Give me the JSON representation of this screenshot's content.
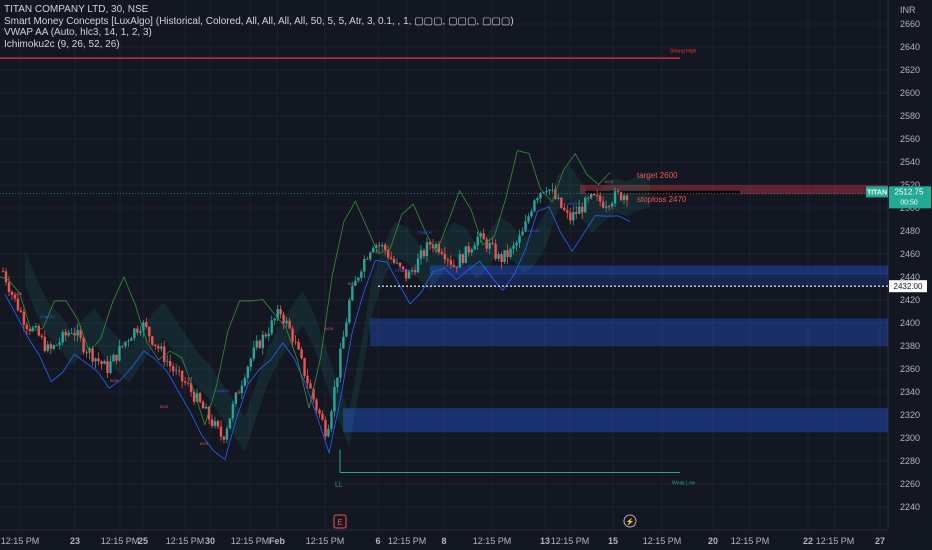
{
  "legend": {
    "symbol_line": "TITAN COMPANY LTD, 30, NSE",
    "indicators": [
      "Smart Money Concepts [LuxAlgo] (Historical, Colored, All, All, All, All, 50, 5, 5, Atr, 3, 0.1, , 1, ▢▢▢, ▢▢▢, ▢▢▢)",
      "VWAP AA (Auto, hlc3, 14, 1, 2, 3)",
      "Ichimoku2c (9, 26, 52, 26)"
    ]
  },
  "colors": {
    "background": "#131722",
    "grid": "#1e222d",
    "bull": "#26a69a",
    "bear": "#ef5350",
    "axis_text": "#b2b5be",
    "demand_zone": "#2962ff",
    "supply_zone": "#f23645",
    "price_label": "#22ab94"
  },
  "chart_data": {
    "type": "candlestick",
    "title": "TITAN COMPANY LTD, 30, NSE",
    "currency": "INR",
    "ylim": [
      2230,
      2670
    ],
    "y_ticks": [
      2240,
      2260,
      2280,
      2300,
      2320,
      2340,
      2360,
      2380,
      2400,
      2420,
      2440,
      2460,
      2480,
      2500,
      2520,
      2540,
      2560,
      2580,
      2600,
      2620,
      2640,
      2660
    ],
    "x_ticks": [
      "12:15 PM",
      "23",
      "12:15 PM",
      "25",
      "12:15 PM",
      "30",
      "12:15 PM",
      "Feb",
      "12:15 PM",
      "6",
      "12:15 PM",
      "8",
      "12:15 PM",
      "13",
      "12:15 PM",
      "15",
      "12:15 PM",
      "20",
      "12:15 PM",
      "22",
      "12:15 PM",
      "27"
    ],
    "close_path": [
      2445,
      2420,
      2400,
      2390,
      2375,
      2385,
      2395,
      2380,
      2370,
      2360,
      2375,
      2390,
      2400,
      2385,
      2370,
      2355,
      2345,
      2330,
      2315,
      2300,
      2330,
      2360,
      2380,
      2395,
      2410,
      2390,
      2360,
      2330,
      2305,
      2360,
      2420,
      2450,
      2470,
      2465,
      2450,
      2440,
      2455,
      2470,
      2465,
      2450,
      2460,
      2475,
      2468,
      2455,
      2462,
      2478,
      2510,
      2520,
      2505,
      2490,
      2500,
      2508,
      2505,
      2510,
      2512.75
    ],
    "last_price": "2512.75",
    "last_price_symbol": "TITAN",
    "countdown": "00:50",
    "price_line": "2432.00",
    "annotations": {
      "target": "target 2600",
      "stoploss": "stoploss 2470",
      "strong_high": "Strong High",
      "weak_low": "Weak Low",
      "ll": "LL",
      "bos": "BOS",
      "choch": "CHoCH"
    },
    "event_icons": [
      "E",
      "⚡"
    ]
  }
}
